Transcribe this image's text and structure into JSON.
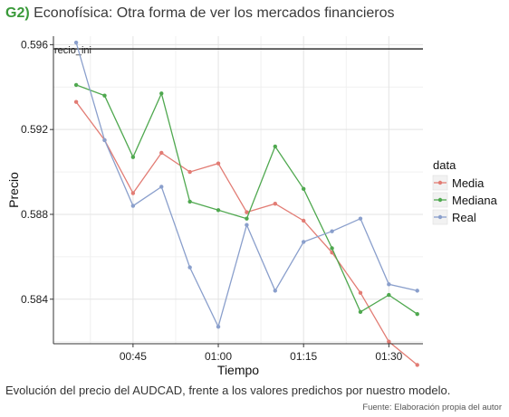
{
  "header": {
    "tag": "G2)",
    "title": "Econofísica: Otra forma de ver los mercados financieros"
  },
  "caption": "Evolución del precio del AUDCAD, frente a los valores predichos por nuestro modelo.",
  "source": "Fuente: Elaboración propia del autor",
  "chart_data": {
    "type": "line",
    "title": "",
    "xlabel": "Tiempo",
    "ylabel": "Precio",
    "x": [
      "00:35",
      "00:40",
      "00:45",
      "00:50",
      "00:55",
      "01:00",
      "01:05",
      "01:10",
      "01:15",
      "01:20",
      "01:25",
      "01:30",
      "01:35"
    ],
    "x_ticks": [
      "00:45",
      "01:00",
      "01:15",
      "01:30"
    ],
    "xlim": [
      "00:31",
      "01:36"
    ],
    "y_ticks": [
      0.584,
      0.588,
      0.592,
      0.596
    ],
    "y_tick_labels": [
      "0.584",
      "0.588",
      "0.592",
      "0.596"
    ],
    "ylim": [
      0.5819,
      0.5964
    ],
    "grid": true,
    "legend": {
      "title": "data",
      "position": "right"
    },
    "hline": {
      "value": 0.5958,
      "label": "recio_ini"
    },
    "series": [
      {
        "name": "Media",
        "color": "#e27c74",
        "values": [
          0.5933,
          0.5915,
          0.589,
          0.5909,
          0.59,
          0.5904,
          0.5881,
          0.5885,
          0.5877,
          0.5862,
          0.5843,
          0.582,
          0.5809
        ]
      },
      {
        "name": "Mediana",
        "color": "#4fa84f",
        "values": [
          0.5941,
          0.5936,
          0.5907,
          0.5937,
          0.5886,
          0.5882,
          0.5878,
          0.5912,
          0.5892,
          0.5864,
          0.5834,
          0.5842,
          0.5833
        ]
      },
      {
        "name": "Real",
        "color": "#8a9fcc",
        "values": [
          0.5961,
          0.5915,
          0.5884,
          0.5893,
          0.5855,
          0.5827,
          0.5875,
          0.5844,
          0.5867,
          0.5872,
          0.5878,
          0.5847,
          0.5844
        ]
      }
    ]
  }
}
